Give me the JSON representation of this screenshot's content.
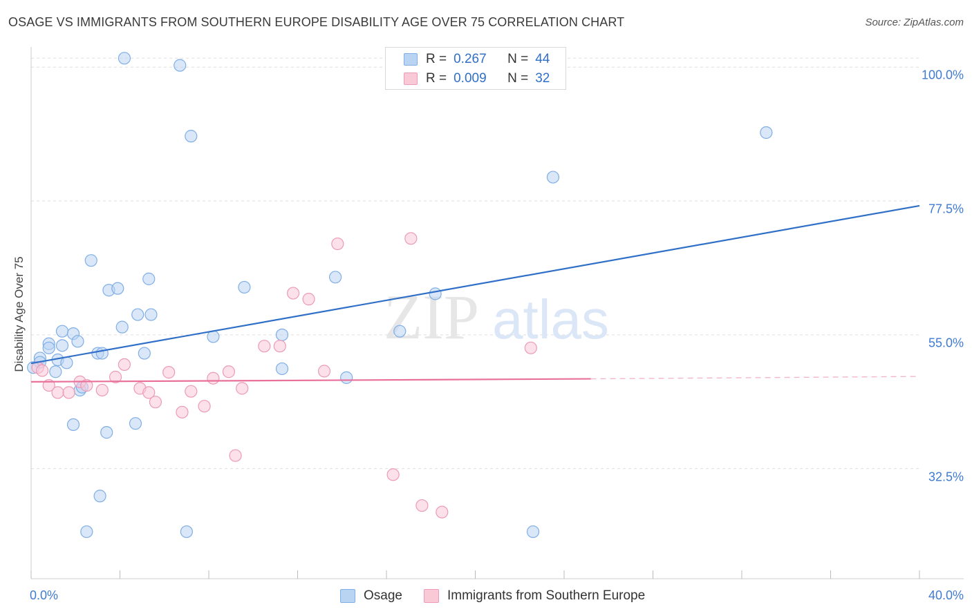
{
  "title": "OSAGE VS IMMIGRANTS FROM SOUTHERN EUROPE DISABILITY AGE OVER 75 CORRELATION CHART",
  "source": "Source: ZipAtlas.com",
  "watermark": {
    "zip": "ZIP",
    "atlas": "atlas"
  },
  "stats_legend": {
    "rows": [
      {
        "r_label": "R =",
        "r_value": "0.267",
        "n_label": "N =",
        "n_value": "44",
        "color": "#b9d3f3"
      },
      {
        "r_label": "R =",
        "r_value": "0.009",
        "n_label": "N =",
        "n_value": "32",
        "color": "#f9c9d8"
      }
    ]
  },
  "chart_data": {
    "type": "scatter",
    "title": "OSAGE VS IMMIGRANTS FROM SOUTHERN EUROPE DISABILITY AGE OVER 75 CORRELATION CHART",
    "xlabel": "",
    "ylabel": "Disability Age Over 75",
    "xlim": [
      0,
      40
    ],
    "ylim": [
      14,
      102
    ],
    "x_tick_labels": [
      "0.0%",
      "40.0%"
    ],
    "y_ticks": [
      {
        "value": 32.5,
        "label": "32.5%"
      },
      {
        "value": 55.0,
        "label": "55.0%"
      },
      {
        "value": 77.5,
        "label": "77.5%"
      },
      {
        "value": 100.0,
        "label": "100.0%"
      }
    ],
    "grid": "horizontal dashed",
    "legend_position": "bottom",
    "series": [
      {
        "name": "Osage",
        "color": "#7faee6",
        "fill": "#b9d3f3",
        "trend": {
          "x": [
            0,
            40
          ],
          "y": [
            50.2,
            76.7
          ],
          "color": "#2f6fc7",
          "dashed_extension": false
        },
        "points": [
          [
            4.2,
            101.5
          ],
          [
            6.7,
            100.3
          ],
          [
            7.2,
            88.4
          ],
          [
            33.1,
            89.0
          ],
          [
            23.5,
            81.5
          ],
          [
            2.7,
            67.5
          ],
          [
            3.5,
            62.5
          ],
          [
            3.9,
            62.8
          ],
          [
            5.3,
            64.4
          ],
          [
            9.6,
            63.0
          ],
          [
            13.7,
            64.7
          ],
          [
            18.2,
            61.9
          ],
          [
            4.8,
            58.4
          ],
          [
            5.4,
            58.4
          ],
          [
            4.1,
            56.3
          ],
          [
            11.3,
            55.0
          ],
          [
            1.4,
            55.6
          ],
          [
            1.9,
            55.2
          ],
          [
            2.1,
            53.9
          ],
          [
            1.4,
            53.2
          ],
          [
            0.8,
            53.5
          ],
          [
            0.8,
            52.8
          ],
          [
            0.4,
            51.1
          ],
          [
            0.4,
            50.4
          ],
          [
            1.2,
            50.8
          ],
          [
            1.6,
            50.3
          ],
          [
            3.0,
            51.9
          ],
          [
            3.2,
            51.9
          ],
          [
            5.1,
            51.9
          ],
          [
            8.2,
            54.7
          ],
          [
            0.1,
            49.5
          ],
          [
            1.1,
            48.8
          ],
          [
            11.3,
            49.3
          ],
          [
            14.2,
            47.8
          ],
          [
            2.2,
            45.7
          ],
          [
            2.3,
            46.2
          ],
          [
            1.9,
            39.9
          ],
          [
            3.4,
            38.6
          ],
          [
            4.7,
            40.1
          ],
          [
            3.1,
            27.9
          ],
          [
            2.5,
            21.9
          ],
          [
            7.0,
            21.9
          ],
          [
            22.6,
            21.9
          ],
          [
            16.6,
            55.6
          ]
        ]
      },
      {
        "name": "Immigrants from Southern Europe",
        "color": "#ec9ab5",
        "fill": "#f9c9d8",
        "trend": {
          "x": [
            0,
            25.2
          ],
          "y": [
            47.1,
            47.6
          ],
          "color": "#e8709a",
          "dashed_extension": true,
          "extension_to": [
            40,
            48.0
          ]
        },
        "points": [
          [
            0.3,
            49.5
          ],
          [
            0.5,
            49.0
          ],
          [
            0.8,
            46.5
          ],
          [
            1.2,
            45.3
          ],
          [
            1.7,
            45.3
          ],
          [
            2.2,
            47.1
          ],
          [
            2.5,
            46.5
          ],
          [
            3.2,
            45.7
          ],
          [
            3.8,
            47.9
          ],
          [
            4.2,
            50.0
          ],
          [
            4.9,
            46.0
          ],
          [
            5.3,
            45.3
          ],
          [
            5.6,
            43.7
          ],
          [
            6.2,
            48.7
          ],
          [
            6.8,
            42.0
          ],
          [
            7.2,
            45.5
          ],
          [
            7.8,
            43.0
          ],
          [
            8.2,
            47.7
          ],
          [
            8.9,
            48.8
          ],
          [
            9.5,
            46.0
          ],
          [
            10.5,
            53.1
          ],
          [
            11.2,
            53.1
          ],
          [
            11.8,
            62.0
          ],
          [
            12.5,
            61.0
          ],
          [
            13.2,
            48.9
          ],
          [
            13.8,
            70.3
          ],
          [
            9.2,
            34.7
          ],
          [
            16.3,
            31.5
          ],
          [
            17.1,
            71.2
          ],
          [
            17.6,
            26.3
          ],
          [
            18.5,
            25.2
          ],
          [
            22.5,
            52.8
          ]
        ]
      }
    ]
  },
  "bottom_legend": [
    {
      "label": "Osage"
    },
    {
      "label": "Immigrants from Southern Europe"
    }
  ]
}
